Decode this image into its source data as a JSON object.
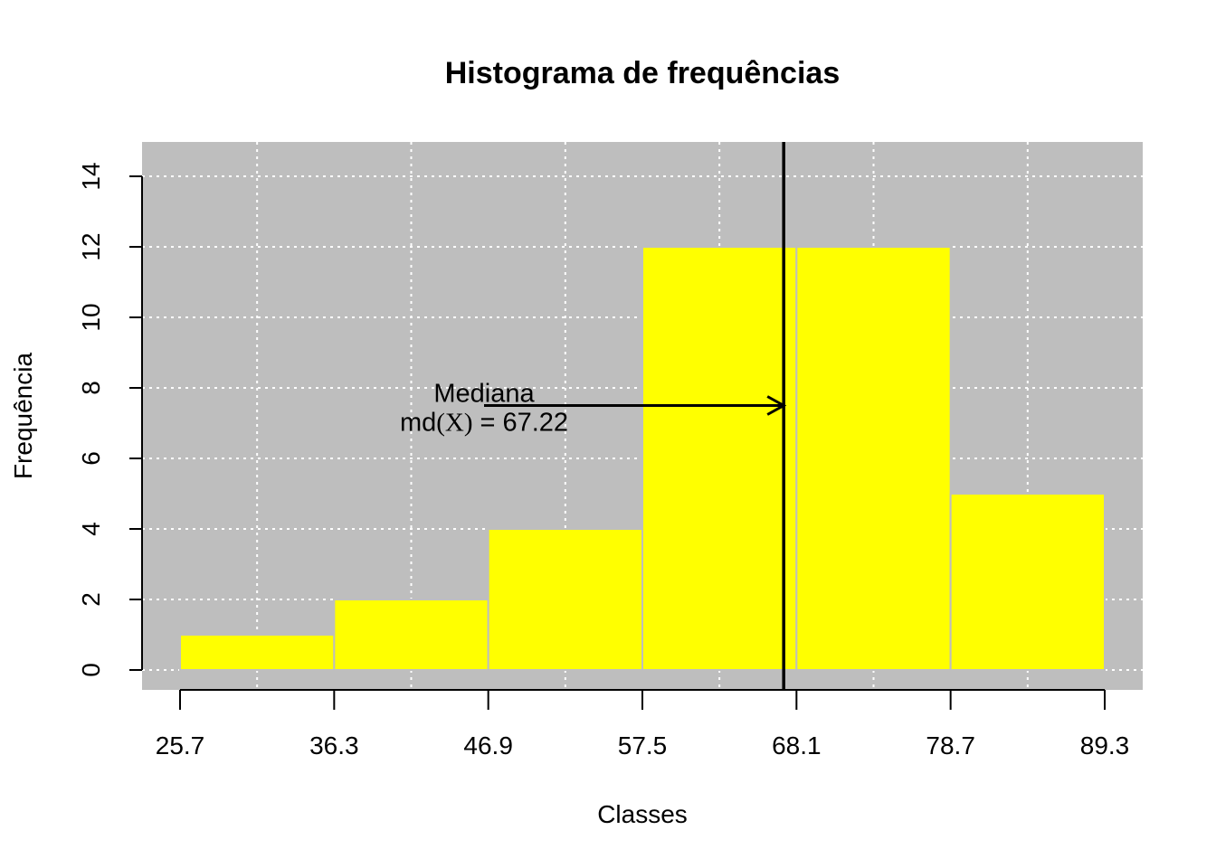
{
  "chart_data": {
    "type": "bar",
    "title": "Histograma de frequências",
    "xlabel": "Classes",
    "ylabel": "Frequência",
    "class_breaks": [
      "25.7",
      "36.3",
      "46.9",
      "57.5",
      "68.1",
      "78.7",
      "89.3"
    ],
    "values": [
      1,
      2,
      4,
      12,
      12,
      5
    ],
    "xlim": [
      25.7,
      89.3
    ],
    "ylim": [
      0,
      14
    ],
    "y_ticks": [
      0,
      2,
      4,
      6,
      8,
      10,
      12,
      14
    ],
    "grid": true,
    "colors": {
      "bar": "#FFFF00",
      "bar_border": "#BEBEBE",
      "panel_background": "#BEBEBE",
      "grid": "#FFFFFF",
      "median_line": "#000000"
    },
    "median": {
      "value": 67.22,
      "label": "Mediana",
      "formula_prefix": "md",
      "formula_var": "(X)",
      "formula_eq": "=",
      "formula_value": "67.22",
      "arrow_y": 7.5
    }
  }
}
